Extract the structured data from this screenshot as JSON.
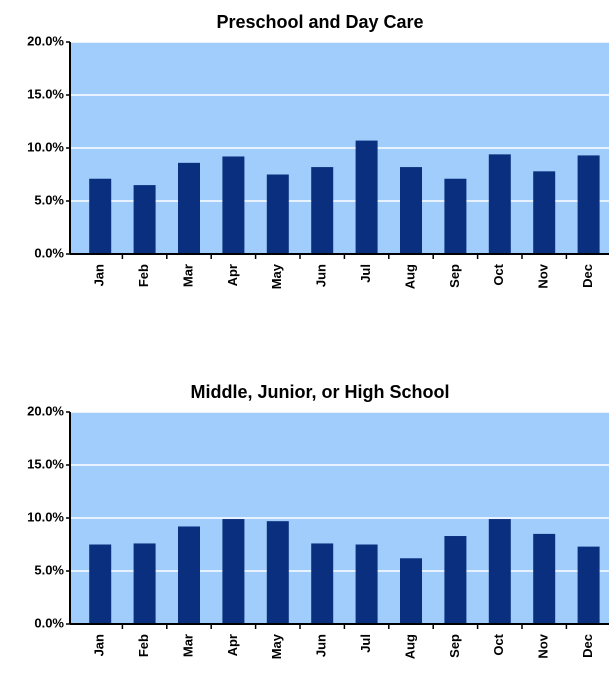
{
  "chart_data": [
    {
      "type": "bar",
      "title": "Preschool and Day Care",
      "categories": [
        "Jan",
        "Feb",
        "Mar",
        "Apr",
        "May",
        "Jun",
        "Jul",
        "Aug",
        "Sep",
        "Oct",
        "Nov",
        "Dec"
      ],
      "values": [
        7.1,
        6.5,
        8.6,
        9.2,
        7.5,
        8.2,
        10.7,
        8.2,
        7.1,
        9.4,
        7.8,
        9.3
      ],
      "color": "#0a2f7f",
      "ylim": [
        0,
        20
      ],
      "yticks": [
        {
          "value": 0,
          "label": "0.0%"
        },
        {
          "value": 5,
          "label": "5.0%"
        },
        {
          "value": 10,
          "label": "10.0%"
        },
        {
          "value": 15,
          "label": "15.0%"
        },
        {
          "value": 20,
          "label": "20.0%"
        }
      ],
      "grid": true
    },
    {
      "type": "bar",
      "title": "Middle, Junior, or High School",
      "categories": [
        "Jan",
        "Feb",
        "Mar",
        "Apr",
        "May",
        "Jun",
        "Jul",
        "Aug",
        "Sep",
        "Oct",
        "Nov",
        "Dec"
      ],
      "values": [
        7.5,
        7.6,
        9.2,
        9.9,
        9.7,
        7.6,
        7.5,
        6.2,
        8.3,
        9.9,
        8.5,
        7.3
      ],
      "color": "#0a2f7f",
      "ylim": [
        0,
        20
      ],
      "yticks": [
        {
          "value": 0,
          "label": "0.0%"
        },
        {
          "value": 5,
          "label": "5.0%"
        },
        {
          "value": 10,
          "label": "10.0%"
        },
        {
          "value": 15,
          "label": "15.0%"
        },
        {
          "value": 20,
          "label": "20.0%"
        }
      ],
      "grid": true
    }
  ]
}
